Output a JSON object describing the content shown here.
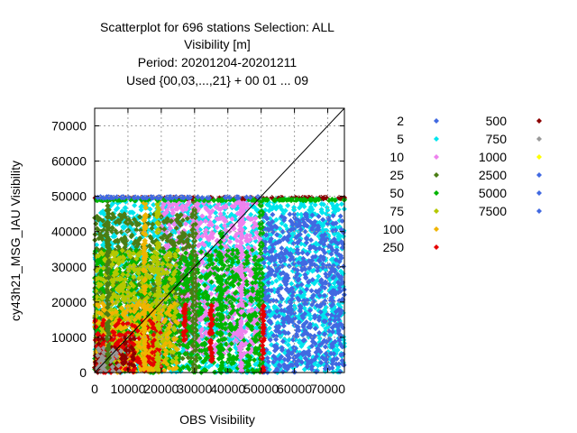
{
  "chart_data": {
    "type": "scatter",
    "title_lines": [
      "Scatterplot for  696 stations Selection: ALL",
      "Visibility [m]",
      "Period: 20201204-20201211",
      "Used {00,03,...,21} + 00 01 ... 09"
    ],
    "xlabel": "OBS Visibility",
    "ylabel": "cy43h21_MSG_IAU Visibility",
    "xlim": [
      0,
      75000
    ],
    "ylim": [
      0,
      75000
    ],
    "xticks": [
      0,
      10000,
      20000,
      30000,
      40000,
      50000,
      60000,
      70000
    ],
    "yticks": [
      0,
      10000,
      20000,
      30000,
      40000,
      50000,
      60000,
      70000
    ],
    "xtick_labels": [
      "0",
      "10000",
      "20000",
      "30000",
      "40000",
      "50000",
      "60000",
      "70000"
    ],
    "ytick_labels": [
      "0",
      "10000",
      "20000",
      "30000",
      "40000",
      "50000",
      "60000",
      "70000"
    ],
    "grid": true,
    "diagonal": true,
    "legend_position": "right",
    "series": [
      {
        "name": "2",
        "color": "#4169e1"
      },
      {
        "name": "5",
        "color": "#00e5ee"
      },
      {
        "name": "10",
        "color": "#ee82ee"
      },
      {
        "name": "25",
        "color": "#4b7d14"
      },
      {
        "name": "50",
        "color": "#00b400"
      },
      {
        "name": "75",
        "color": "#b4c800"
      },
      {
        "name": "100",
        "color": "#f0b400"
      },
      {
        "name": "250",
        "color": "#e60000"
      },
      {
        "name": "500",
        "color": "#8b0000"
      },
      {
        "name": "750",
        "color": "#999999"
      },
      {
        "name": "1000",
        "color": "#ffff00"
      },
      {
        "name": "2500",
        "color": "#4169e1"
      },
      {
        "name": "5000",
        "color": "#4169e1"
      },
      {
        "name": "7500",
        "color": "#4169e1"
      }
    ],
    "regions": [
      {
        "series": "5",
        "x": [
          0,
          75000
        ],
        "y": [
          0,
          49500
        ]
      },
      {
        "series": "2",
        "x": [
          50000,
          75000
        ],
        "y": [
          0,
          45000
        ]
      },
      {
        "series": "10",
        "x": [
          20000,
          50000
        ],
        "y": [
          5000,
          49500
        ]
      },
      {
        "series": "25",
        "x": [
          0,
          30000
        ],
        "y": [
          3000,
          45000
        ]
      },
      {
        "series": "50",
        "x": [
          0,
          50000
        ],
        "y": [
          0,
          35000
        ]
      },
      {
        "series": "75",
        "x": [
          0,
          25000
        ],
        "y": [
          3000,
          35000
        ]
      },
      {
        "series": "100",
        "x": [
          0,
          25000
        ],
        "y": [
          0,
          20000
        ]
      },
      {
        "series": "250",
        "x": [
          0,
          20000
        ],
        "y": [
          0,
          15000
        ]
      },
      {
        "series": "500",
        "x": [
          0,
          12000
        ],
        "y": [
          0,
          10000
        ]
      },
      {
        "series": "750",
        "x": [
          0,
          8000
        ],
        "y": [
          0,
          7000
        ]
      }
    ],
    "columns": [
      {
        "series": "50",
        "x": 50000,
        "y": [
          0,
          49500
        ]
      },
      {
        "series": "250",
        "x": 50500,
        "y": [
          0,
          20000
        ]
      },
      {
        "series": "10",
        "x": 44000,
        "y": [
          0,
          49500
        ]
      },
      {
        "series": "25",
        "x": 30000,
        "y": [
          0,
          49500
        ]
      },
      {
        "series": "75",
        "x": 19000,
        "y": [
          0,
          49500
        ]
      },
      {
        "series": "50",
        "x": 38000,
        "y": [
          0,
          40000
        ]
      },
      {
        "series": "250",
        "x": 35000,
        "y": [
          3000,
          20000
        ]
      },
      {
        "series": "250",
        "x": 27000,
        "y": [
          8000,
          20000
        ]
      },
      {
        "series": "25",
        "x": 4000,
        "y": [
          0,
          49500
        ]
      },
      {
        "series": "100",
        "x": 15000,
        "y": [
          0,
          49500
        ]
      }
    ],
    "rows": [
      {
        "series": "500",
        "y": 49500,
        "x": [
          0,
          75000
        ]
      },
      {
        "series": "50",
        "y": 49000,
        "x": [
          0,
          75000
        ]
      },
      {
        "series": "2",
        "y": 49700,
        "x": [
          0,
          50000
        ]
      }
    ]
  }
}
